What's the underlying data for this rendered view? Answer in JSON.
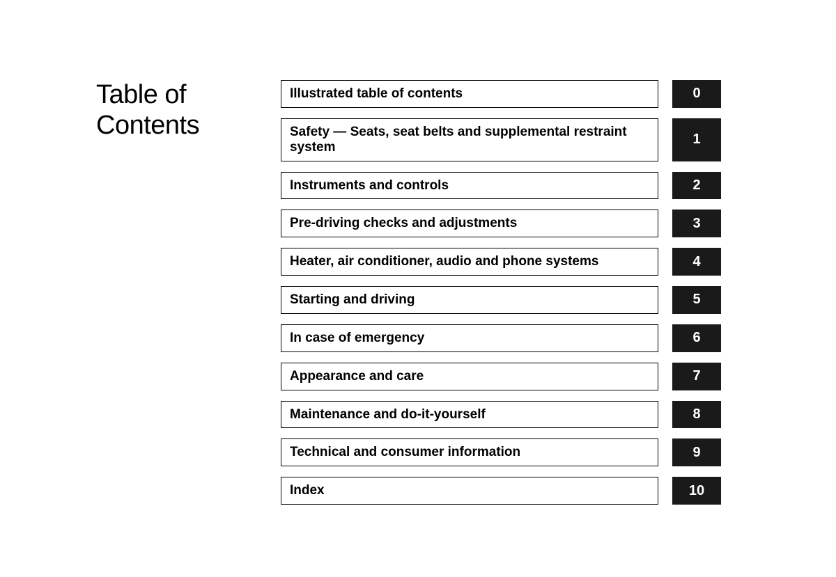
{
  "heading": {
    "line1": "Table of",
    "line2": "Contents"
  },
  "entries": [
    {
      "label": "Illustrated table of contents",
      "num": "0"
    },
    {
      "label": "Safety — Seats, seat belts and supplemental restraint system",
      "num": "1"
    },
    {
      "label": "Instruments and controls",
      "num": "2"
    },
    {
      "label": "Pre-driving checks and adjustments",
      "num": "3"
    },
    {
      "label": "Heater, air conditioner, audio and phone systems",
      "num": "4"
    },
    {
      "label": "Starting and driving",
      "num": "5"
    },
    {
      "label": "In case of emergency",
      "num": "6"
    },
    {
      "label": "Appearance and care",
      "num": "7"
    },
    {
      "label": "Maintenance and do-it-yourself",
      "num": "8"
    },
    {
      "label": "Technical and consumer information",
      "num": "9"
    },
    {
      "label": "Index",
      "num": "10"
    }
  ],
  "style": {
    "page_bg": "#ffffff",
    "text_color": "#000000",
    "tab_bg": "#1a1a1a",
    "tab_text": "#ffffff",
    "border_color": "#000000",
    "title_fontsize": 38,
    "label_fontsize": 19,
    "num_fontsize": 20,
    "label_width": 542,
    "num_width": 70,
    "row_gap": 15
  }
}
